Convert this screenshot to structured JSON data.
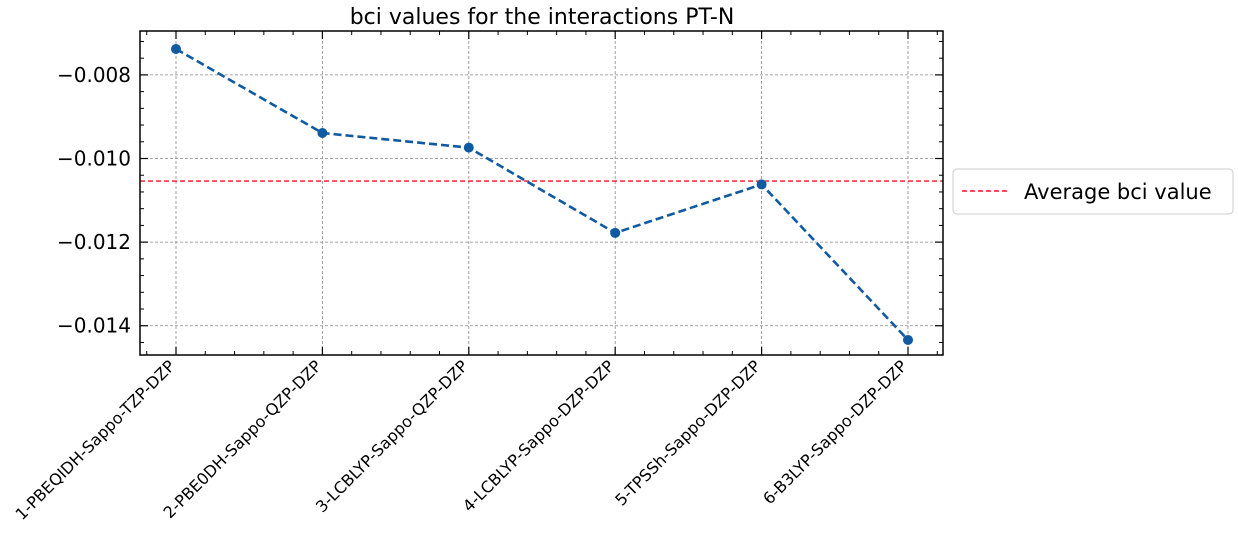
{
  "chart_data": {
    "type": "line",
    "title": "bci values for the interactions PT-N",
    "xlabel": "",
    "ylabel": "",
    "categories": [
      "1-PBEQIDH-Sappo-TZP-DZP",
      "2-PBE0DH-Sappo-QZP-DZP",
      "3-LCBLYP-Sappo-QZP-DZP",
      "4-LCBLYP-Sappo-DZP-DZP",
      "5-TPSSh-Sappo-DZP-DZP",
      "6-B3LYP-Sappo-DZP-DZP"
    ],
    "series": [
      {
        "values": [
          -0.00738,
          -0.00939,
          -0.00974,
          -0.01178,
          -0.01062,
          -0.01434
        ],
        "color": "#0f5aa0",
        "style": "dashed",
        "marker": "circle"
      }
    ],
    "reference_line": {
      "label": "Average bci value",
      "value": -0.01054,
      "color": "#e8171c",
      "style": "dashed"
    },
    "ylim": [
      -0.0147,
      -0.00695
    ],
    "yticks": [
      -0.008,
      -0.01,
      -0.012,
      -0.014
    ],
    "ytick_labels": [
      "−0.008",
      "−0.010",
      "−0.012",
      "−0.014"
    ],
    "grid": true,
    "legend_position": "right"
  }
}
